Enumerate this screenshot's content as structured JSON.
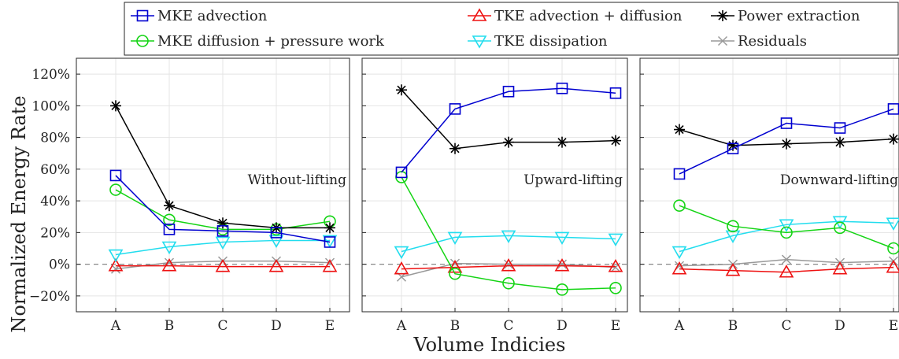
{
  "chart_data": {
    "type": "line",
    "ylabel": "Normalized Energy Rate",
    "xlabel": "Volume Indicies",
    "ylim": [
      -30,
      130
    ],
    "yticks": [
      -20,
      0,
      20,
      40,
      60,
      80,
      100,
      120
    ],
    "ytick_labels": [
      "−20%",
      "0%",
      "20%",
      "40%",
      "60%",
      "80%",
      "100%",
      "120%"
    ],
    "categories": [
      "A",
      "B",
      "C",
      "D",
      "E"
    ],
    "grid": true,
    "zero_line": "dashed",
    "legend": {
      "placement": "top",
      "columns": 3,
      "entries": [
        {
          "key": "mke_adv",
          "label": "MKE advection"
        },
        {
          "key": "mke_diff",
          "label": "MKE diffusion + pressure work"
        },
        {
          "key": "tke_adv",
          "label": "TKE advection + diffusion"
        },
        {
          "key": "tke_diss",
          "label": "TKE dissipation"
        },
        {
          "key": "power",
          "label": "Power extraction"
        },
        {
          "key": "resid",
          "label": "Residuals"
        }
      ]
    },
    "series_style": {
      "mke_adv": {
        "color": "#0000d0",
        "marker": "square"
      },
      "mke_diff": {
        "color": "#14d414",
        "marker": "circle"
      },
      "tke_adv": {
        "color": "#ee1111",
        "marker": "triangle-up"
      },
      "tke_diss": {
        "color": "#22ddee",
        "marker": "triangle-down"
      },
      "power": {
        "color": "#000000",
        "marker": "asterisk"
      },
      "resid": {
        "color": "#999999",
        "marker": "x"
      }
    },
    "panels": [
      {
        "label": "Without-lifting",
        "series": [
          {
            "key": "mke_adv",
            "values": [
              56,
              22,
              21,
              20,
              14
            ]
          },
          {
            "key": "mke_diff",
            "values": [
              47,
              28,
              22,
              22,
              27
            ]
          },
          {
            "key": "tke_adv",
            "values": [
              -1,
              -1,
              -1.5,
              -1.5,
              -1.5
            ]
          },
          {
            "key": "tke_diss",
            "values": [
              6,
              11,
              14,
              15,
              15
            ]
          },
          {
            "key": "power",
            "values": [
              100,
              37,
              26,
              23,
              23
            ]
          },
          {
            "key": "resid",
            "values": [
              -3,
              1,
              2,
              2,
              1
            ]
          }
        ]
      },
      {
        "label": "Upward-lifting",
        "series": [
          {
            "key": "mke_adv",
            "values": [
              58,
              98,
              109,
              111,
              108
            ]
          },
          {
            "key": "mke_diff",
            "values": [
              55,
              -6,
              -12,
              -16,
              -15
            ]
          },
          {
            "key": "tke_adv",
            "values": [
              -3,
              -2,
              -1,
              -1,
              -1.5
            ]
          },
          {
            "key": "tke_diss",
            "values": [
              8,
              17,
              18,
              17,
              16
            ]
          },
          {
            "key": "power",
            "values": [
              110,
              73,
              77,
              77,
              78
            ]
          },
          {
            "key": "resid",
            "values": [
              -8,
              0.5,
              0,
              0,
              -2
            ]
          }
        ]
      },
      {
        "label": "Downward-lifting",
        "series": [
          {
            "key": "mke_adv",
            "values": [
              57,
              73,
              89,
              86,
              98
            ]
          },
          {
            "key": "mke_diff",
            "values": [
              37,
              24,
              20,
              23,
              10
            ]
          },
          {
            "key": "tke_adv",
            "values": [
              -3,
              -4,
              -5,
              -3,
              -2
            ]
          },
          {
            "key": "tke_diss",
            "values": [
              8,
              18,
              25,
              27,
              26
            ]
          },
          {
            "key": "power",
            "values": [
              85,
              75,
              76,
              77,
              79
            ]
          },
          {
            "key": "resid",
            "values": [
              -1,
              0,
              3,
              1,
              2
            ]
          }
        ]
      }
    ]
  }
}
